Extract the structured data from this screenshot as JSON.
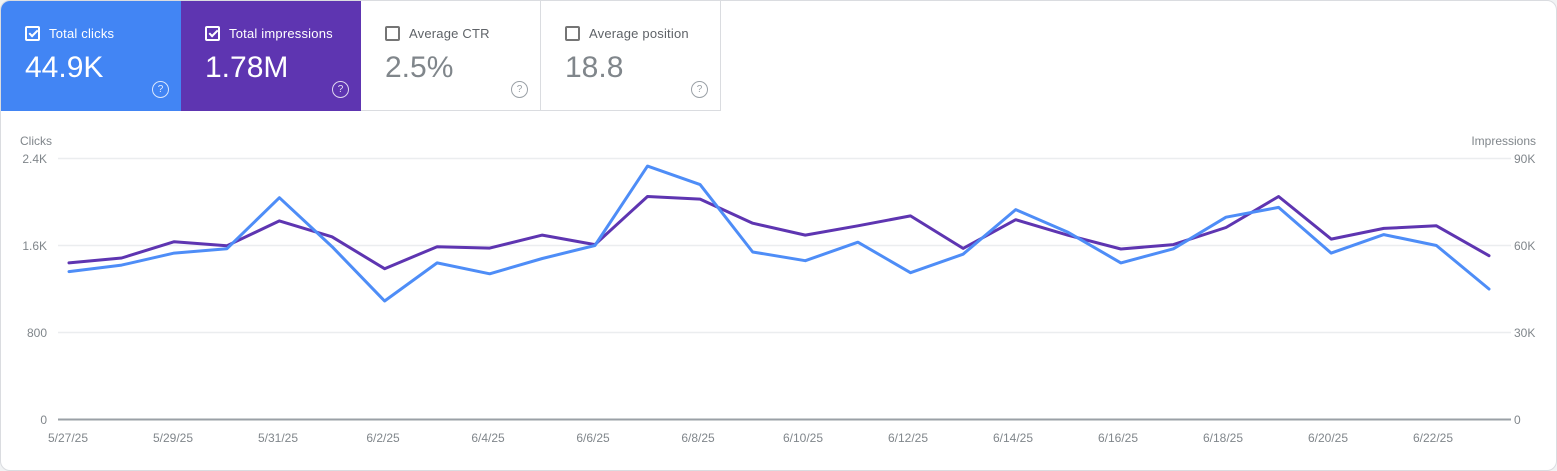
{
  "cards": [
    {
      "label": "Total clicks",
      "value": "44.9K",
      "checked": true,
      "color": "#4285f4",
      "text_color": "#ffffff"
    },
    {
      "label": "Total impressions",
      "value": "1.78M",
      "checked": true,
      "color": "#5e35b1",
      "text_color": "#ffffff"
    },
    {
      "label": "Average CTR",
      "value": "2.5%",
      "checked": false,
      "color": "#ffffff",
      "text_color": "#80868b"
    },
    {
      "label": "Average position",
      "value": "18.8",
      "checked": false,
      "color": "#ffffff",
      "text_color": "#80868b"
    }
  ],
  "help_icon_glyph": "?",
  "chart_data": {
    "type": "line",
    "x_dates": [
      "5/27/25",
      "5/28/25",
      "5/29/25",
      "5/30/25",
      "5/31/25",
      "6/1/25",
      "6/2/25",
      "6/3/25",
      "6/4/25",
      "6/5/25",
      "6/6/25",
      "6/7/25",
      "6/8/25",
      "6/9/25",
      "6/10/25",
      "6/11/25",
      "6/12/25",
      "6/13/25",
      "6/14/25",
      "6/15/25",
      "6/16/25",
      "6/17/25",
      "6/18/25",
      "6/19/25",
      "6/20/25",
      "6/21/25",
      "6/22/25",
      "6/23/25"
    ],
    "x_tick_labels": [
      "5/27/25",
      "5/29/25",
      "5/31/25",
      "6/2/25",
      "6/4/25",
      "6/6/25",
      "6/8/25",
      "6/10/25",
      "6/12/25",
      "6/14/25",
      "6/16/25",
      "6/18/25",
      "6/20/25",
      "6/22/25"
    ],
    "series": [
      {
        "name": "Clicks",
        "axis": "left",
        "color": "#4e8df7",
        "values": [
          1360,
          1420,
          1530,
          1570,
          2040,
          1590,
          1090,
          1440,
          1340,
          1480,
          1600,
          2330,
          2160,
          1540,
          1460,
          1630,
          1350,
          1520,
          1930,
          1720,
          1440,
          1570,
          1860,
          1950,
          1530,
          1700,
          1600,
          1200
        ]
      },
      {
        "name": "Impressions",
        "axis": "right",
        "color": "#5e35b1",
        "values": [
          54000,
          55700,
          61300,
          59900,
          68500,
          63000,
          52000,
          59600,
          59100,
          63600,
          60300,
          76900,
          76000,
          67700,
          63600,
          66800,
          70200,
          59000,
          68900,
          63500,
          58800,
          60300,
          66200,
          76900,
          62200,
          65900,
          66800,
          56500
        ]
      }
    ],
    "left_axis": {
      "title": "Clicks",
      "max": 2400,
      "ticks": [
        {
          "value": 2400,
          "label": "2.4K"
        },
        {
          "value": 1600,
          "label": "1.6K"
        },
        {
          "value": 800,
          "label": "800"
        },
        {
          "value": 0,
          "label": "0"
        }
      ]
    },
    "right_axis": {
      "title": "Impressions",
      "max": 90000,
      "ticks": [
        {
          "value": 90000,
          "label": "90K"
        },
        {
          "value": 60000,
          "label": "60K"
        },
        {
          "value": 30000,
          "label": "30K"
        },
        {
          "value": 0,
          "label": "0"
        }
      ]
    },
    "grid": true,
    "legend": "none"
  }
}
